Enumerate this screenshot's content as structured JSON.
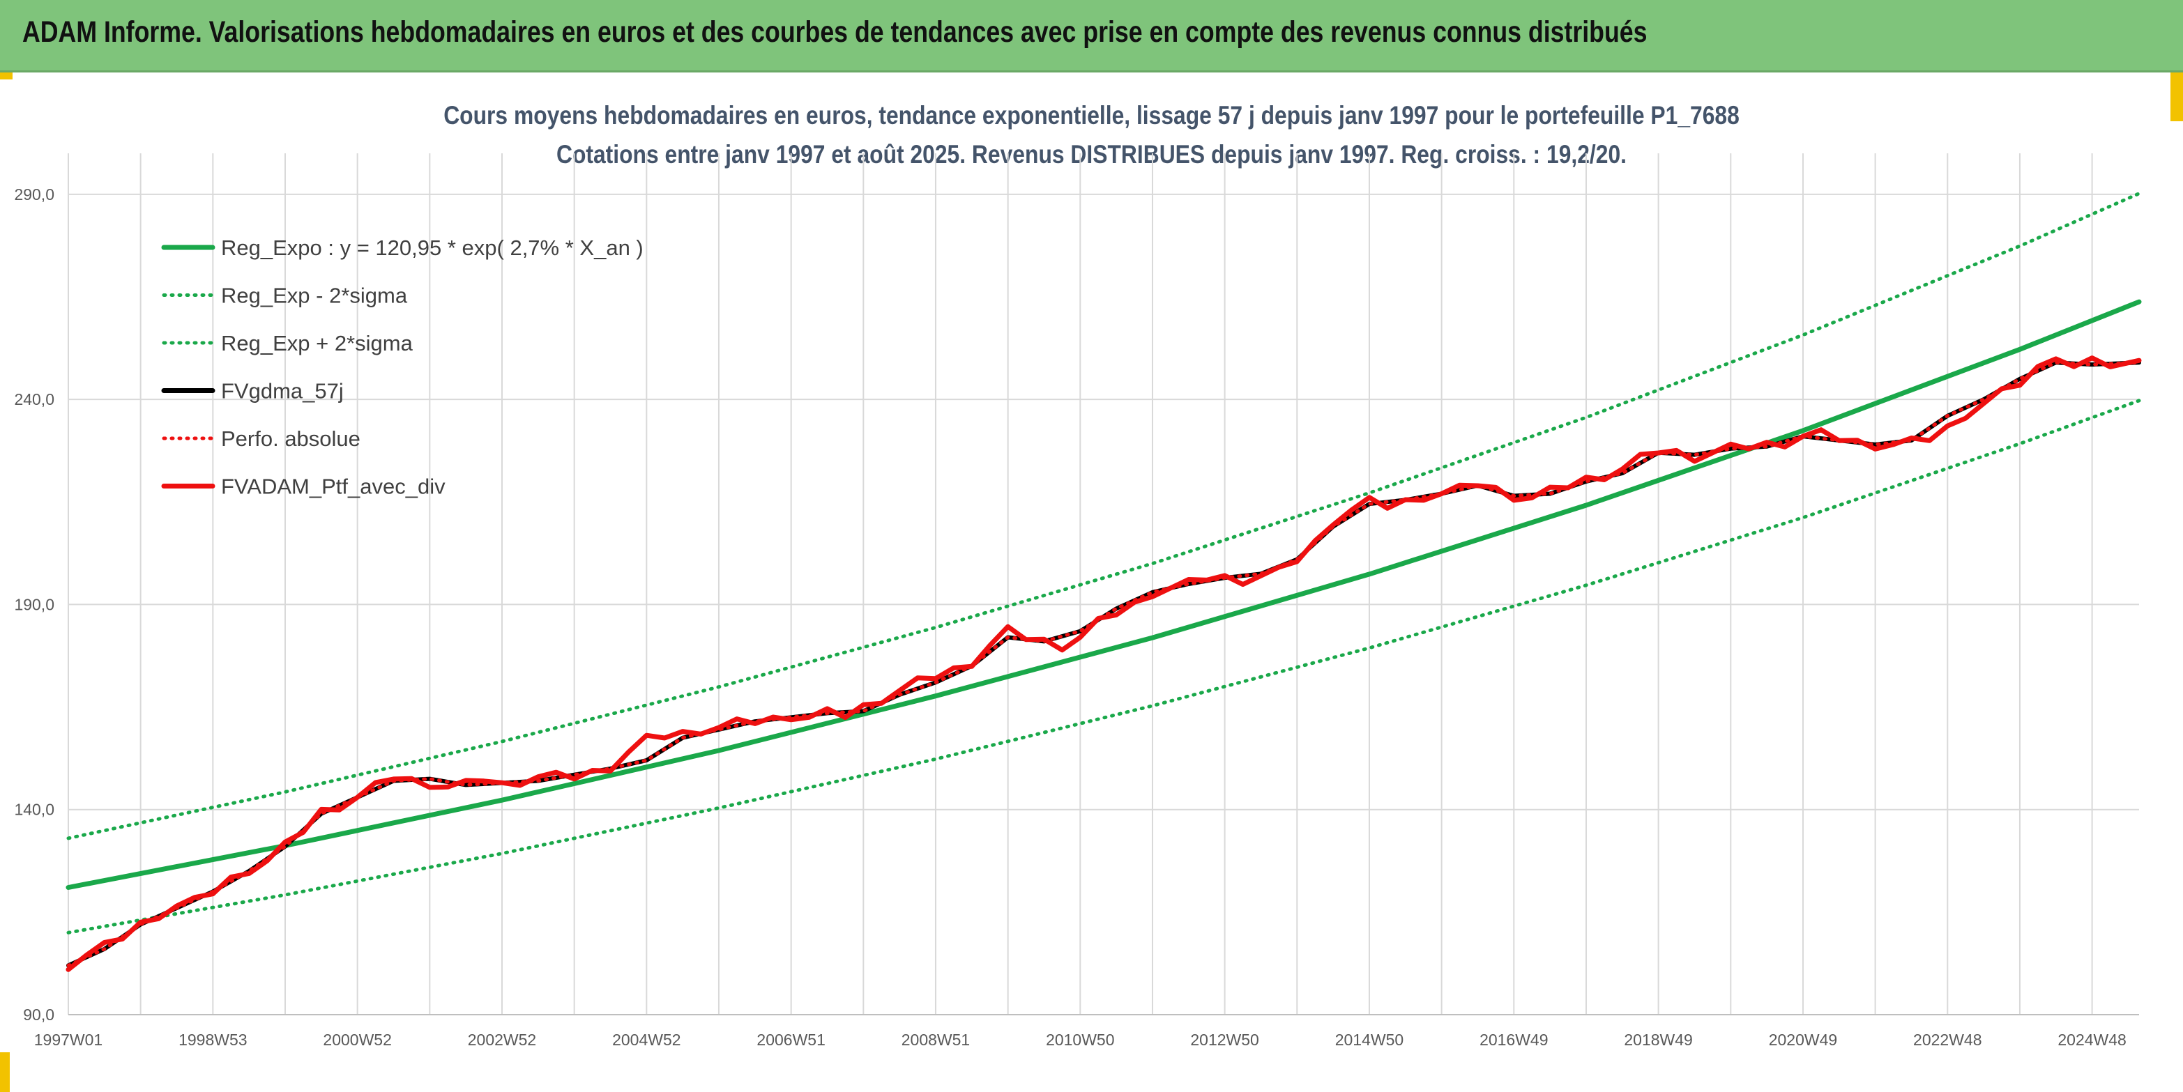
{
  "banner": {
    "title": "ADAM Informe. Valorisations hebdomadaires en euros et des courbes de tendances avec prise en compte des revenus connus distribués"
  },
  "colors": {
    "banner_bg": "#7fc47b",
    "accent_yellow": "#f2c200",
    "trend_green": "#1aa84a",
    "perf_red": "#ee1010",
    "fv_black": "#000000",
    "title_color": "#44546a"
  },
  "chart_data": {
    "type": "line",
    "title": "Cours moyens hebdomadaires en euros, tendance exponentielle, lissage 57 j depuis janv 1997 pour le portefeuille P1_7688",
    "subtitle": "Cotations entre janv 1997 et août 2025. Revenus DISTRIBUES depuis janv 1997. Reg. croiss. : 19,2/20.",
    "xlabel": "",
    "ylabel": "",
    "x_range_years": [
      1997.0,
      2025.65
    ],
    "ylim": [
      90,
      300
    ],
    "y_ticks": [
      90,
      140,
      190,
      240,
      290
    ],
    "y_tick_labels": [
      "90,0",
      "140,0",
      "190,0",
      "240,0",
      "290,0"
    ],
    "x_tick_years": [
      1997.0,
      1999.0,
      2001.0,
      2003.0,
      2005.0,
      2007.0,
      2009.0,
      2011.0,
      2013.0,
      2015.0,
      2017.0,
      2019.0,
      2021.0,
      2023.0,
      2025.0
    ],
    "x_tick_labels": [
      "1997W01",
      "1998W53",
      "2000W52",
      "2002W52",
      "2004W52",
      "2006W51",
      "2008W51",
      "2010W50",
      "2012W50",
      "2014W50",
      "2016W49",
      "2018W49",
      "2020W49",
      "2022W48",
      "2024W48"
    ],
    "grid": true,
    "legend_position": "top-left",
    "series": [
      {
        "name": "Reg_Expo : y = 120,95 * exp( 2,7% *  X_an )",
        "style": "solid",
        "color": "#1aa84a",
        "x": [
          1997.0,
          2000.0,
          2003.0,
          2006.0,
          2009.0,
          2012.0,
          2015.0,
          2018.0,
          2021.0,
          2024.0,
          2025.65
        ],
        "values": [
          121.0,
          131.2,
          142.3,
          154.4,
          167.7,
          181.9,
          197.4,
          214.2,
          232.4,
          252.2,
          263.8
        ]
      },
      {
        "name": "Reg_Exp - 2*sigma",
        "style": "dotted",
        "color": "#1aa84a",
        "x": [
          1997.0,
          2000.0,
          2003.0,
          2006.0,
          2009.0,
          2012.0,
          2015.0,
          2018.0,
          2021.0,
          2024.0,
          2025.65
        ],
        "values": [
          110.0,
          119.2,
          129.3,
          140.4,
          152.3,
          165.3,
          179.4,
          194.7,
          211.2,
          229.2,
          239.7
        ]
      },
      {
        "name": "Reg_Exp + 2*sigma",
        "style": "dotted",
        "color": "#1aa84a",
        "x": [
          1997.0,
          2000.0,
          2003.0,
          2006.0,
          2009.0,
          2012.0,
          2015.0,
          2018.0,
          2021.0,
          2024.0,
          2025.65
        ],
        "values": [
          133.0,
          144.3,
          156.6,
          169.9,
          184.4,
          200.0,
          217.2,
          235.6,
          255.7,
          277.4,
          290.2
        ]
      },
      {
        "name": "FVgdma_57j",
        "style": "solid",
        "color": "#000000",
        "x": [
          1997.0,
          1997.5,
          1998.0,
          1998.5,
          1999.0,
          1999.5,
          2000.0,
          2000.5,
          2001.0,
          2001.5,
          2002.0,
          2002.5,
          2003.0,
          2003.5,
          2004.0,
          2004.5,
          2005.0,
          2005.5,
          2006.0,
          2006.5,
          2007.0,
          2007.5,
          2008.0,
          2008.5,
          2009.0,
          2009.5,
          2010.0,
          2010.5,
          2011.0,
          2011.5,
          2012.0,
          2012.5,
          2013.0,
          2013.5,
          2014.0,
          2014.5,
          2015.0,
          2015.5,
          2016.0,
          2016.5,
          2017.0,
          2017.5,
          2018.0,
          2018.5,
          2019.0,
          2019.5,
          2020.0,
          2020.5,
          2021.0,
          2021.5,
          2022.0,
          2022.5,
          2023.0,
          2023.5,
          2024.0,
          2024.5,
          2025.0,
          2025.65
        ],
        "values": [
          102.0,
          106.0,
          112.0,
          116.0,
          120.0,
          125.0,
          131.0,
          139.0,
          143.0,
          147.0,
          147.5,
          146.0,
          146.5,
          147.0,
          148.5,
          150.0,
          152.0,
          157.5,
          159.5,
          161.5,
          162.5,
          163.5,
          164.0,
          168.0,
          171.0,
          175.0,
          182.0,
          181.0,
          183.5,
          189.0,
          193.0,
          195.0,
          196.5,
          197.5,
          201.0,
          209.0,
          214.5,
          215.5,
          217.0,
          219.0,
          216.5,
          217.0,
          220.0,
          222.0,
          227.0,
          226.5,
          228.0,
          228.5,
          231.0,
          230.0,
          229.0,
          230.0,
          236.0,
          240.0,
          245.0,
          249.0,
          248.5,
          249.0
        ]
      },
      {
        "name": "Perfo. absolue",
        "style": "dotted",
        "color": "#ee1010",
        "x": [
          1997.0,
          1997.5,
          1998.0,
          1998.5,
          1999.0,
          1999.5,
          2000.0,
          2000.5,
          2001.0,
          2001.5,
          2002.0,
          2002.5,
          2003.0,
          2003.5,
          2004.0,
          2004.5,
          2005.0,
          2005.5,
          2006.0,
          2006.5,
          2007.0,
          2007.5,
          2008.0,
          2008.5,
          2009.0,
          2009.5,
          2010.0,
          2010.5,
          2011.0,
          2011.5,
          2012.0,
          2012.5,
          2013.0,
          2013.5,
          2014.0,
          2014.5,
          2015.0,
          2015.5,
          2016.0,
          2016.5,
          2017.0,
          2017.5,
          2018.0,
          2018.5,
          2019.0,
          2019.5,
          2020.0,
          2020.5,
          2021.0,
          2021.5,
          2022.0,
          2022.5,
          2023.0,
          2023.5,
          2024.0,
          2024.5,
          2025.0,
          2025.65
        ],
        "values": [
          102.0,
          106.0,
          112.0,
          116.0,
          120.0,
          125.0,
          131.0,
          139.0,
          143.0,
          147.0,
          147.5,
          146.0,
          146.5,
          147.0,
          148.5,
          150.0,
          152.0,
          157.5,
          159.5,
          161.5,
          162.5,
          163.5,
          164.0,
          168.0,
          171.0,
          175.0,
          182.0,
          181.0,
          183.5,
          189.0,
          193.0,
          195.0,
          196.5,
          197.5,
          201.0,
          209.0,
          214.5,
          215.5,
          217.0,
          219.0,
          216.5,
          217.0,
          220.0,
          222.0,
          227.0,
          226.5,
          228.0,
          228.5,
          231.0,
          230.0,
          229.0,
          230.0,
          236.0,
          240.0,
          245.0,
          249.0,
          248.5,
          249.0
        ]
      },
      {
        "name": "FVADAM_Ptf_avec_div",
        "style": "solid",
        "color": "#ee1010",
        "x": [
          1997.0,
          1997.25,
          1997.5,
          1997.75,
          1998.0,
          1998.25,
          1998.5,
          1998.75,
          1999.0,
          1999.25,
          1999.5,
          1999.75,
          2000.0,
          2000.25,
          2000.5,
          2000.75,
          2001.0,
          2001.25,
          2001.5,
          2001.75,
          2002.0,
          2002.25,
          2002.5,
          2002.75,
          2003.0,
          2003.25,
          2003.5,
          2003.75,
          2004.0,
          2004.25,
          2004.5,
          2004.75,
          2005.0,
          2005.25,
          2005.5,
          2005.75,
          2006.0,
          2006.25,
          2006.5,
          2006.75,
          2007.0,
          2007.25,
          2007.5,
          2007.75,
          2008.0,
          2008.25,
          2008.5,
          2008.75,
          2009.0,
          2009.25,
          2009.5,
          2009.75,
          2010.0,
          2010.25,
          2010.5,
          2010.75,
          2011.0,
          2011.25,
          2011.5,
          2011.75,
          2012.0,
          2012.25,
          2012.5,
          2012.75,
          2013.0,
          2013.25,
          2013.5,
          2013.75,
          2014.0,
          2014.25,
          2014.5,
          2014.75,
          2015.0,
          2015.25,
          2015.5,
          2015.75,
          2016.0,
          2016.25,
          2016.5,
          2016.75,
          2017.0,
          2017.25,
          2017.5,
          2017.75,
          2018.0,
          2018.25,
          2018.5,
          2018.75,
          2019.0,
          2019.25,
          2019.5,
          2019.75,
          2020.0,
          2020.25,
          2020.5,
          2020.75,
          2021.0,
          2021.25,
          2021.5,
          2021.75,
          2022.0,
          2022.25,
          2022.5,
          2022.75,
          2023.0,
          2023.25,
          2023.5,
          2023.75,
          2024.0,
          2024.25,
          2024.5,
          2024.75,
          2025.0,
          2025.25,
          2025.65
        ],
        "values": [
          101.0,
          104.5,
          106.5,
          109.0,
          112.0,
          114.5,
          116.5,
          117.5,
          120.0,
          123.0,
          125.5,
          127.5,
          131.0,
          135.0,
          139.5,
          141.0,
          143.0,
          145.5,
          148.0,
          147.0,
          146.5,
          145.5,
          146.0,
          147.5,
          146.0,
          147.0,
          148.0,
          148.0,
          148.0,
          149.0,
          150.5,
          154.0,
          157.0,
          158.0,
          158.5,
          159.5,
          160.0,
          161.0,
          161.5,
          162.0,
          163.0,
          162.5,
          163.5,
          163.0,
          165.0,
          167.0,
          169.0,
          171.0,
          172.5,
          174.0,
          176.0,
          180.0,
          183.5,
          182.0,
          181.0,
          180.0,
          182.0,
          185.5,
          188.0,
          190.0,
          193.0,
          194.0,
          195.0,
          196.5,
          196.5,
          196.0,
          197.0,
          198.0,
          201.0,
          205.0,
          210.5,
          213.0,
          215.0,
          214.0,
          215.0,
          216.5,
          217.0,
          218.0,
          219.5,
          218.0,
          216.5,
          216.0,
          217.5,
          219.0,
          220.5,
          221.5,
          223.0,
          225.5,
          227.5,
          227.0,
          226.0,
          227.0,
          228.0,
          228.5,
          229.0,
          229.5,
          231.0,
          231.5,
          230.5,
          229.5,
          229.0,
          229.0,
          229.5,
          230.5,
          233.0,
          236.5,
          239.0,
          241.5,
          244.0,
          247.5,
          251.0,
          248.0,
          249.0,
          248.5,
          249.5
        ]
      }
    ]
  }
}
